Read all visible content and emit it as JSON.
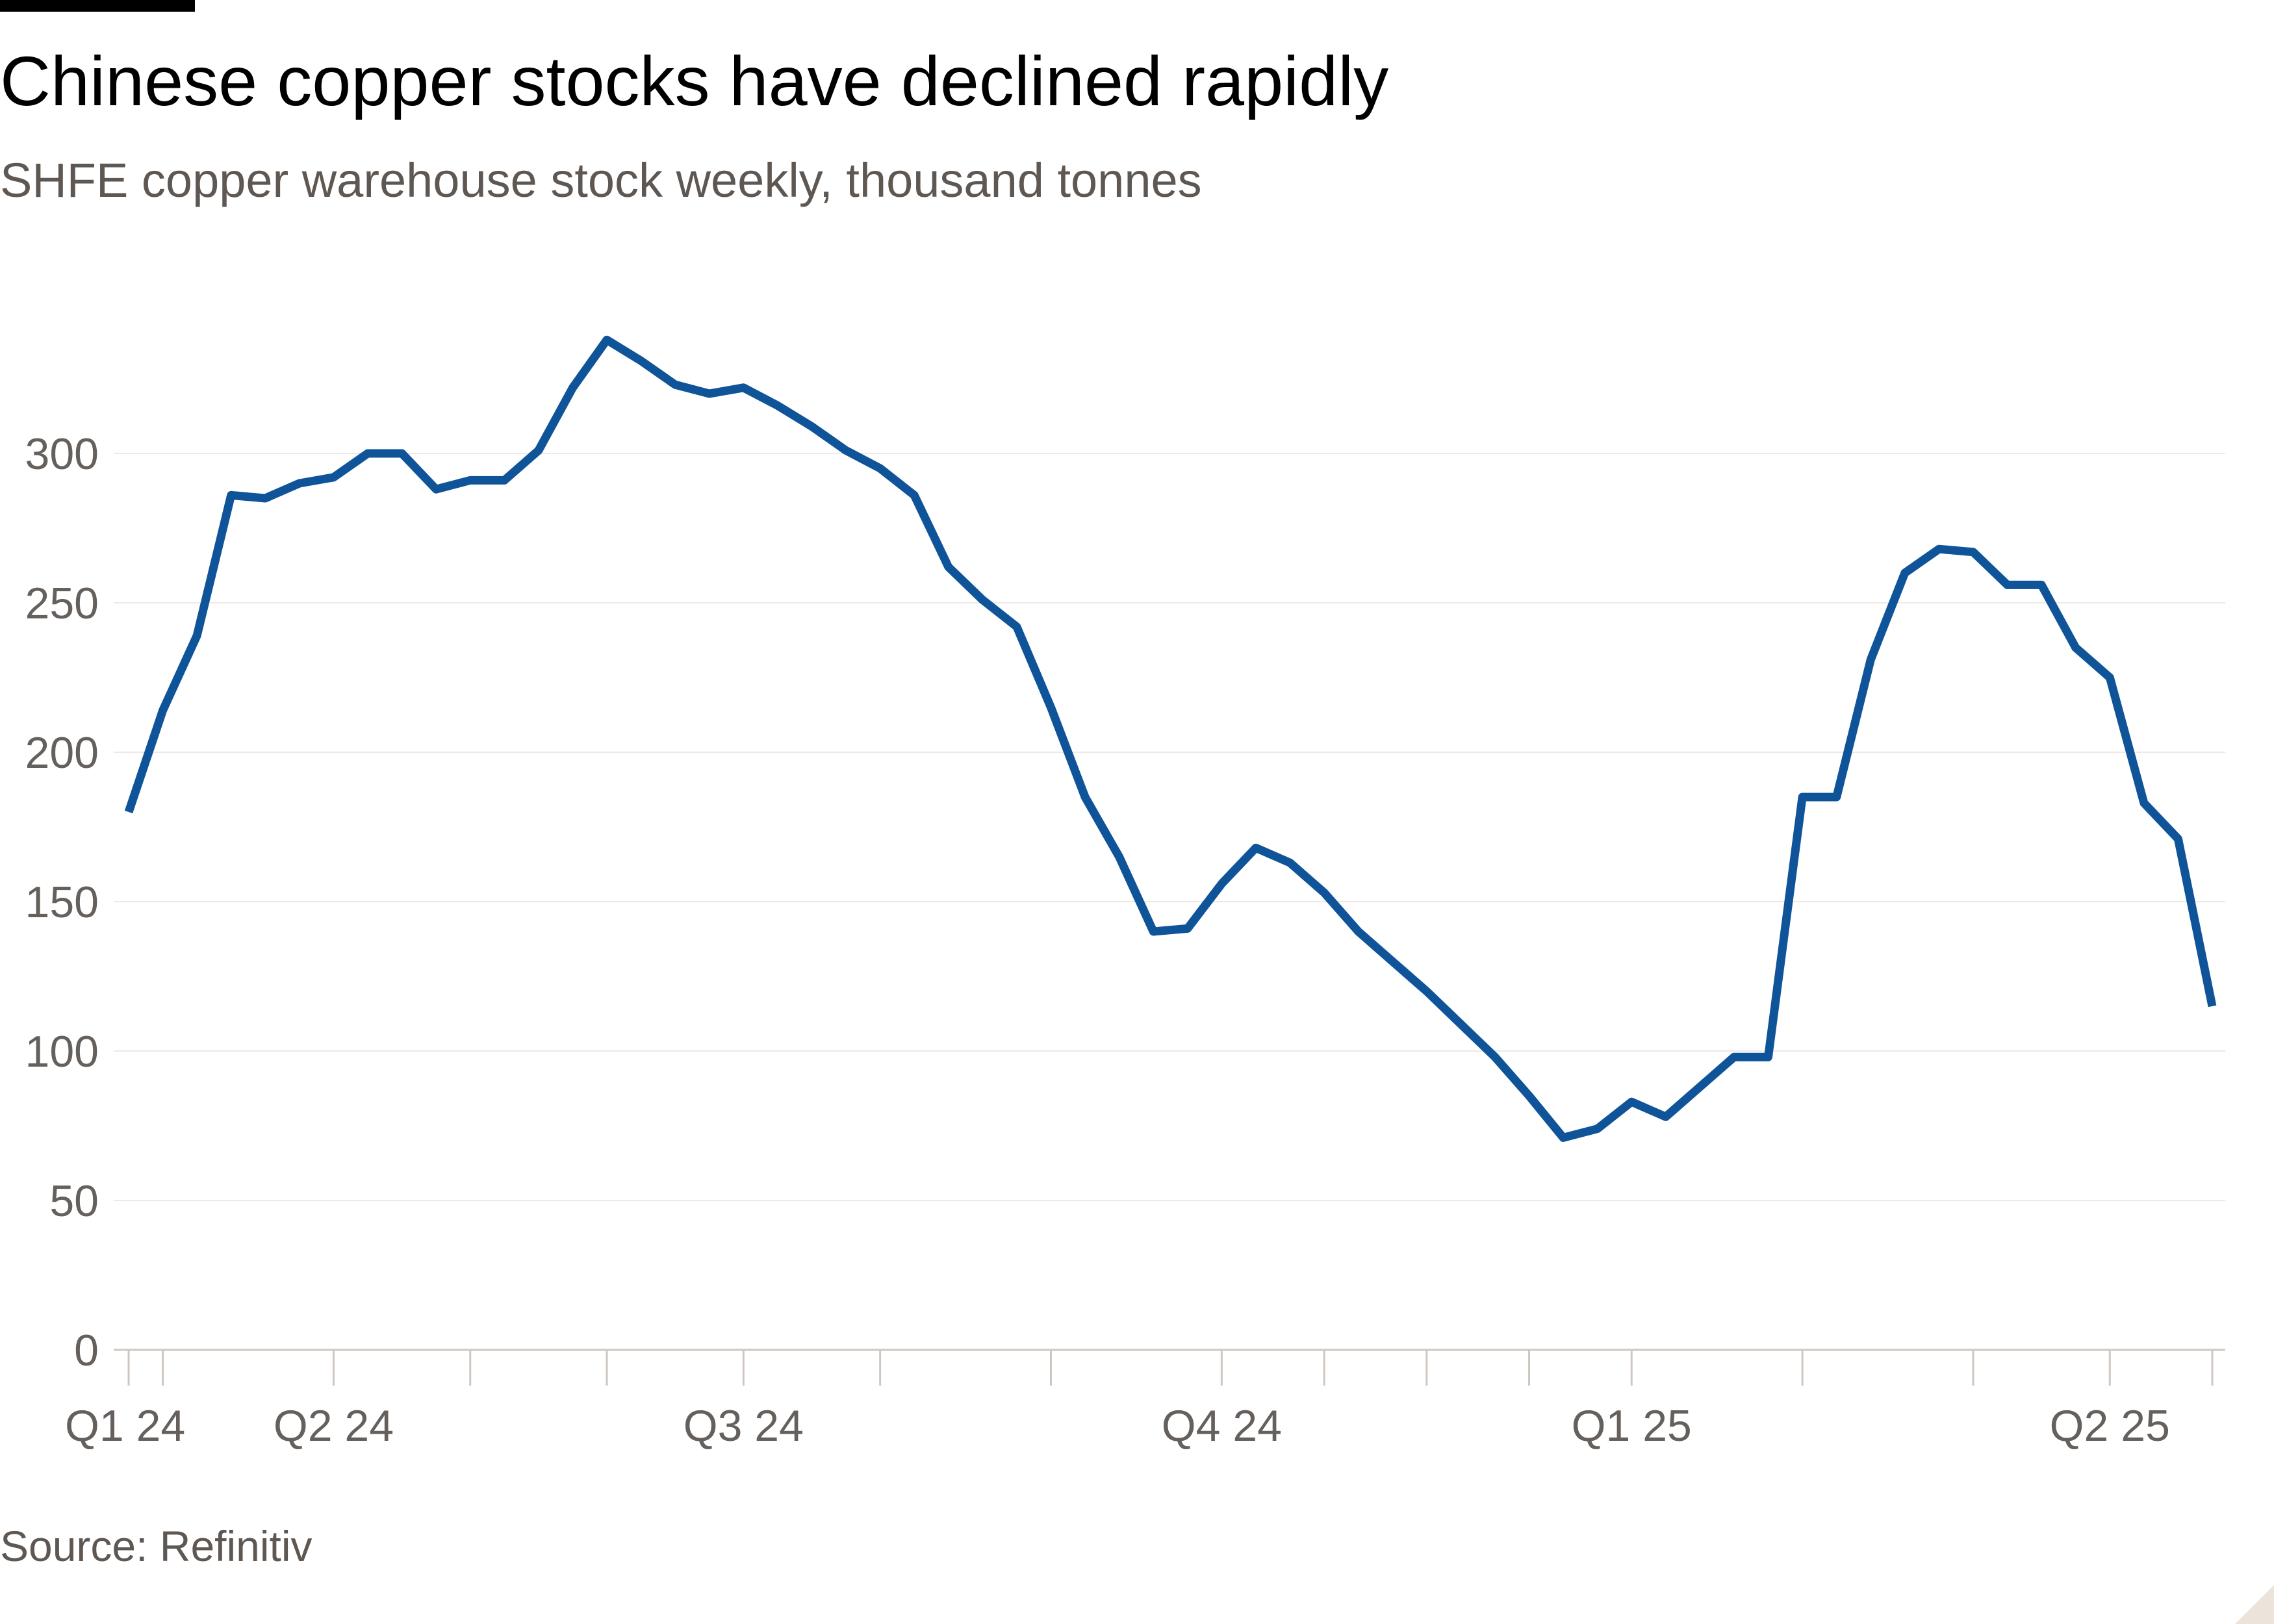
{
  "header": {
    "title": "Chinese copper stocks have declined rapidly",
    "subtitle": "SHFE copper warehouse stock weekly, thousand tonnes"
  },
  "footer": {
    "source": "Source: Refinitiv"
  },
  "chart_data": {
    "type": "line",
    "title": "Chinese copper stocks have declined rapidly",
    "subtitle": "SHFE copper warehouse stock weekly, thousand tonnes",
    "xlabel": "",
    "ylabel": "",
    "ylim": [
      0,
      350
    ],
    "yticks": [
      0,
      50,
      100,
      150,
      200,
      250,
      300
    ],
    "grid": true,
    "legend": "none",
    "line_color": "#0f5499",
    "x_ticks": [
      {
        "label": "Q1 24",
        "week": 0
      },
      {
        "label": "Q2 24",
        "week": 6
      },
      {
        "label": "Q3 24",
        "week": 18
      },
      {
        "label": "Q4 24",
        "week": 32
      },
      {
        "label": "Q1 25",
        "week": 44
      },
      {
        "label": "Q2 25",
        "week": 58
      }
    ],
    "minor_tick_weeks": [
      1,
      10,
      14,
      22,
      27,
      35,
      38,
      41,
      49,
      54,
      61
    ],
    "series": [
      {
        "name": "",
        "values": [
          180,
          214,
          239,
          286,
          285,
          290,
          292,
          300,
          300,
          288,
          291,
          291,
          301,
          322,
          338,
          331,
          323,
          320,
          322,
          316,
          309,
          301,
          295,
          286,
          262,
          251,
          242,
          215,
          185,
          165,
          140,
          141,
          156,
          168,
          163,
          153,
          140,
          130,
          120,
          109,
          98,
          85,
          71,
          74,
          83,
          78,
          88,
          98,
          98,
          185,
          185,
          231,
          260,
          268,
          267,
          256,
          256,
          235,
          225,
          183,
          171,
          115
        ]
      }
    ]
  }
}
